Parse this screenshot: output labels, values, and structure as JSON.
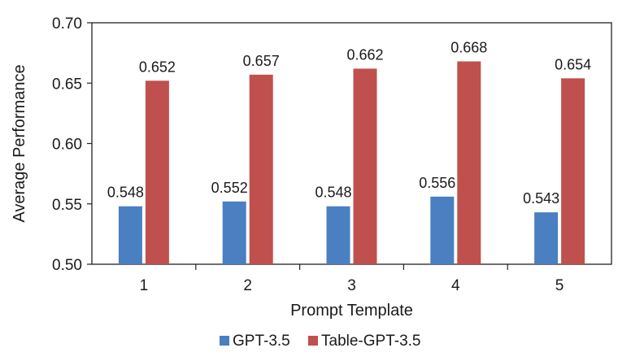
{
  "chart_data": {
    "type": "bar",
    "title": "",
    "xlabel": "Prompt Template",
    "ylabel": "Average Performance",
    "categories": [
      "1",
      "2",
      "3",
      "4",
      "5"
    ],
    "ylim": [
      0.5,
      0.7
    ],
    "yticks": [
      "0.50",
      "0.55",
      "0.60",
      "0.65",
      "0.70"
    ],
    "grid": false,
    "legend_position": "bottom",
    "series": [
      {
        "name": "GPT-3.5",
        "color": "#4a7fc1",
        "values": [
          0.548,
          0.552,
          0.548,
          0.556,
          0.543
        ],
        "labels": [
          "0.548",
          "0.552",
          "0.548",
          "0.556",
          "0.543"
        ]
      },
      {
        "name": "Table-GPT-3.5",
        "color": "#c0504d",
        "values": [
          0.652,
          0.657,
          0.662,
          0.668,
          0.654
        ],
        "labels": [
          "0.652",
          "0.657",
          "0.662",
          "0.668",
          "0.654"
        ]
      }
    ]
  }
}
